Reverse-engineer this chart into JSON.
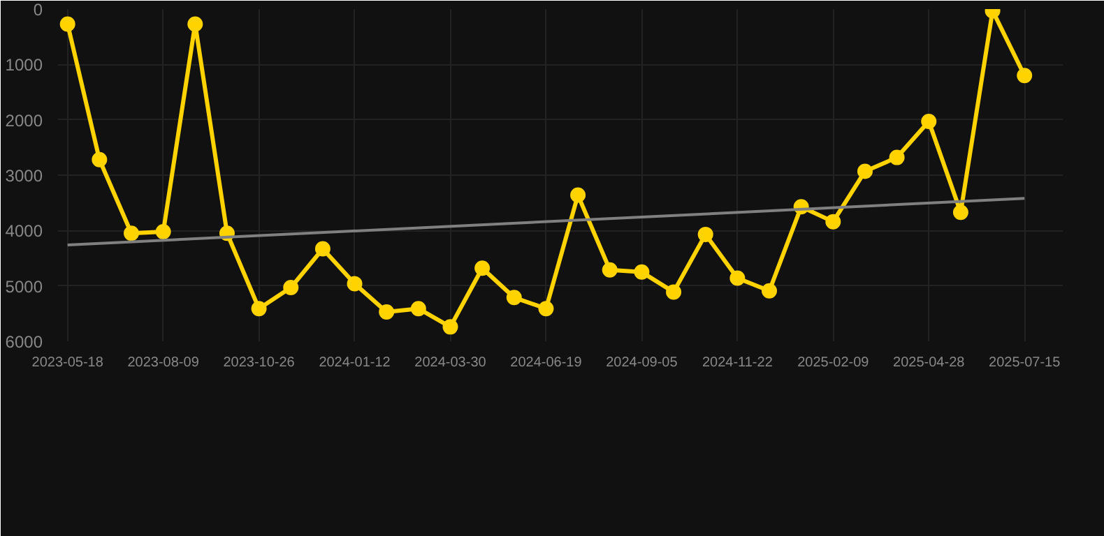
{
  "chart_data": {
    "type": "line",
    "categories": [
      "2023-05-18",
      null,
      null,
      "2023-08-09",
      null,
      null,
      "2023-10-26",
      null,
      null,
      "2024-01-12",
      null,
      null,
      "2024-03-30",
      null,
      null,
      "2024-06-19",
      null,
      null,
      "2024-09-05",
      null,
      null,
      "2024-11-22",
      null,
      null,
      "2025-02-09",
      null,
      null,
      "2025-04-28",
      null,
      null,
      "2025-07-15"
    ],
    "series": [
      {
        "color": "#ffd300",
        "marker": "circle",
        "values": [
          270,
          2720,
          4050,
          4020,
          270,
          4050,
          5410,
          5030,
          4330,
          4960,
          5470,
          5410,
          5740,
          4680,
          5210,
          5410,
          3360,
          4710,
          4750,
          5110,
          4070,
          4860,
          5090,
          3570,
          3840,
          2930,
          2680,
          2030,
          3670,
          30,
          1200
        ]
      },
      {
        "type": "line",
        "color": "#808080",
        "marker": "none",
        "values": [
          4260,
          null,
          null,
          null,
          null,
          null,
          null,
          null,
          null,
          null,
          null,
          null,
          null,
          null,
          null,
          null,
          null,
          null,
          null,
          null,
          null,
          null,
          null,
          null,
          null,
          null,
          null,
          null,
          null,
          null,
          3420
        ]
      }
    ],
    "ylim": [
      6000,
      0
    ],
    "yticks": [
      0,
      1000,
      2000,
      3000,
      4000,
      5000,
      6000
    ],
    "grid": true
  }
}
